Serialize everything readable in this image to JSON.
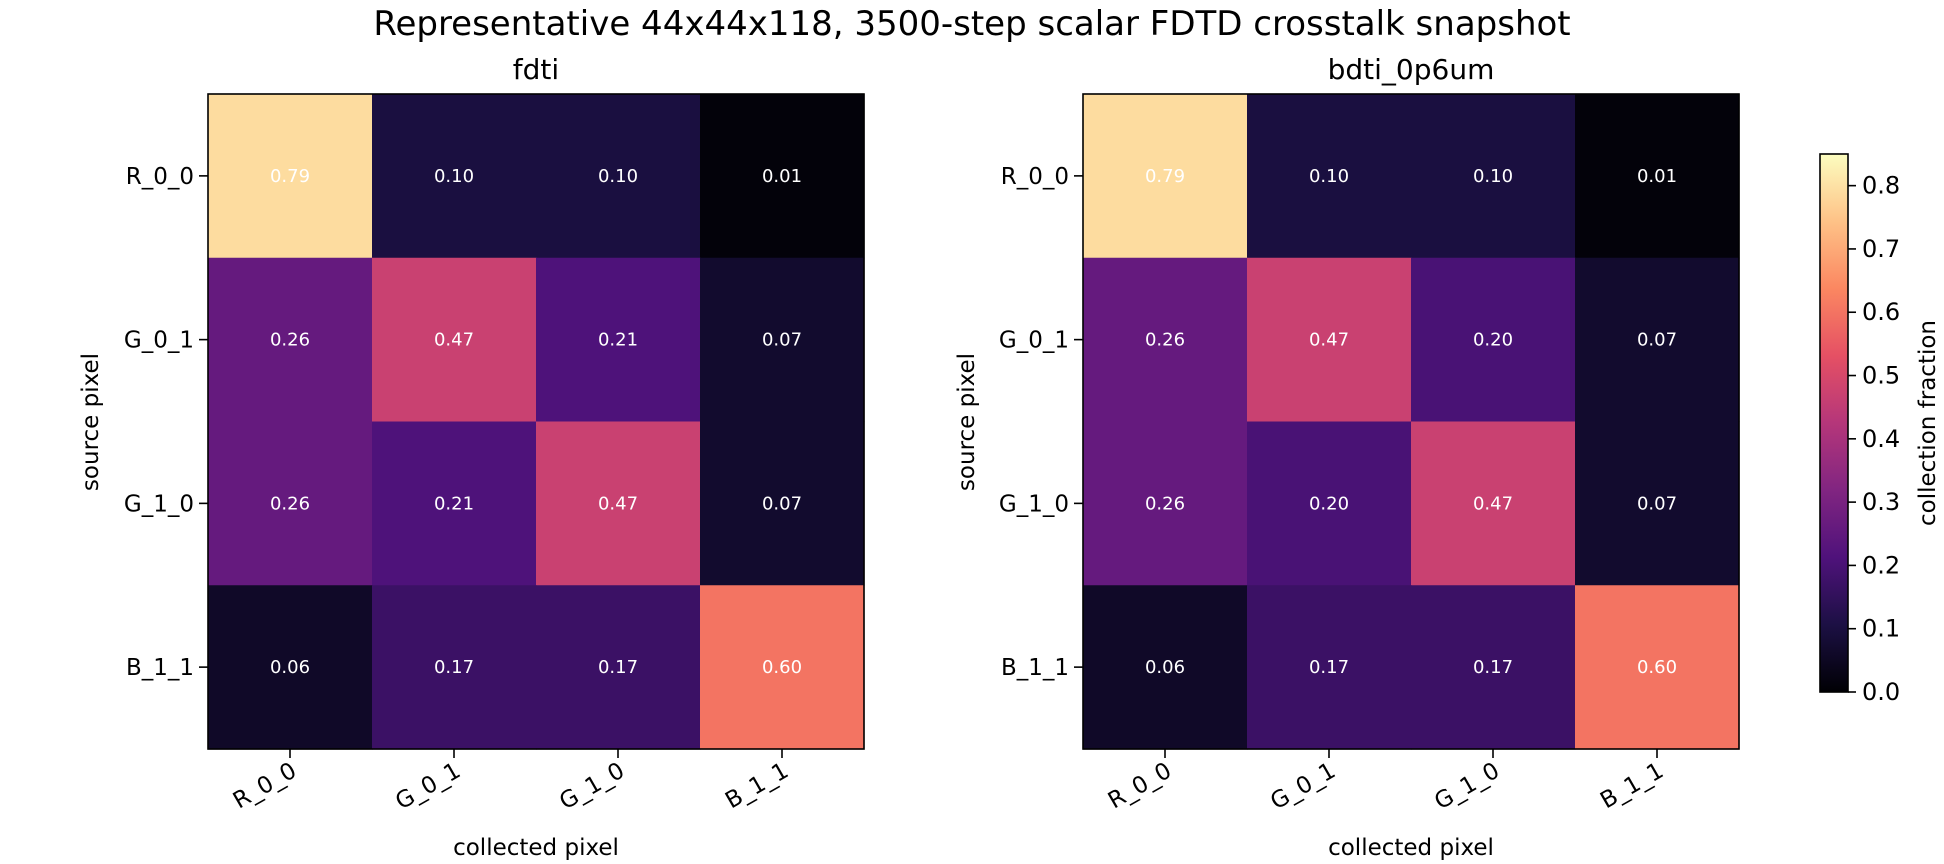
{
  "chart_data": {
    "type": "heatmap",
    "title": "Representative 44x44x118, 3500-step scalar FDTD crosstalk snapshot",
    "colormap": "magma",
    "colorbar": {
      "label": "collection fraction",
      "range": [
        0,
        0.85
      ],
      "ticks": [
        "0.0",
        "0.1",
        "0.2",
        "0.3",
        "0.4",
        "0.5",
        "0.6",
        "0.7",
        "0.8"
      ]
    },
    "panels": [
      {
        "title": "fdti",
        "xlabel": "collected pixel",
        "ylabel": "source pixel",
        "x_categories": [
          "R_0_0",
          "G_0_1",
          "G_1_0",
          "B_1_1"
        ],
        "y_categories": [
          "R_0_0",
          "G_0_1",
          "G_1_0",
          "B_1_1"
        ],
        "values": [
          [
            0.79,
            0.1,
            0.1,
            0.01
          ],
          [
            0.26,
            0.47,
            0.21,
            0.07
          ],
          [
            0.26,
            0.21,
            0.47,
            0.07
          ],
          [
            0.06,
            0.17,
            0.17,
            0.6
          ]
        ],
        "labels": [
          [
            "0.79",
            "0.10",
            "0.10",
            "0.01"
          ],
          [
            "0.26",
            "0.47",
            "0.21",
            "0.07"
          ],
          [
            "0.26",
            "0.21",
            "0.47",
            "0.07"
          ],
          [
            "0.06",
            "0.17",
            "0.17",
            "0.60"
          ]
        ]
      },
      {
        "title": "bdti_0p6um",
        "xlabel": "collected pixel",
        "ylabel": "source pixel",
        "x_categories": [
          "R_0_0",
          "G_0_1",
          "G_1_0",
          "B_1_1"
        ],
        "y_categories": [
          "R_0_0",
          "G_0_1",
          "G_1_0",
          "B_1_1"
        ],
        "values": [
          [
            0.79,
            0.1,
            0.1,
            0.01
          ],
          [
            0.26,
            0.47,
            0.2,
            0.07
          ],
          [
            0.26,
            0.2,
            0.47,
            0.07
          ],
          [
            0.06,
            0.17,
            0.17,
            0.6
          ]
        ],
        "labels": [
          [
            "0.79",
            "0.10",
            "0.10",
            "0.01"
          ],
          [
            "0.26",
            "0.47",
            "0.20",
            "0.07"
          ],
          [
            "0.26",
            "0.20",
            "0.47",
            "0.07"
          ],
          [
            "0.06",
            "0.17",
            "0.17",
            "0.60"
          ]
        ]
      }
    ]
  }
}
